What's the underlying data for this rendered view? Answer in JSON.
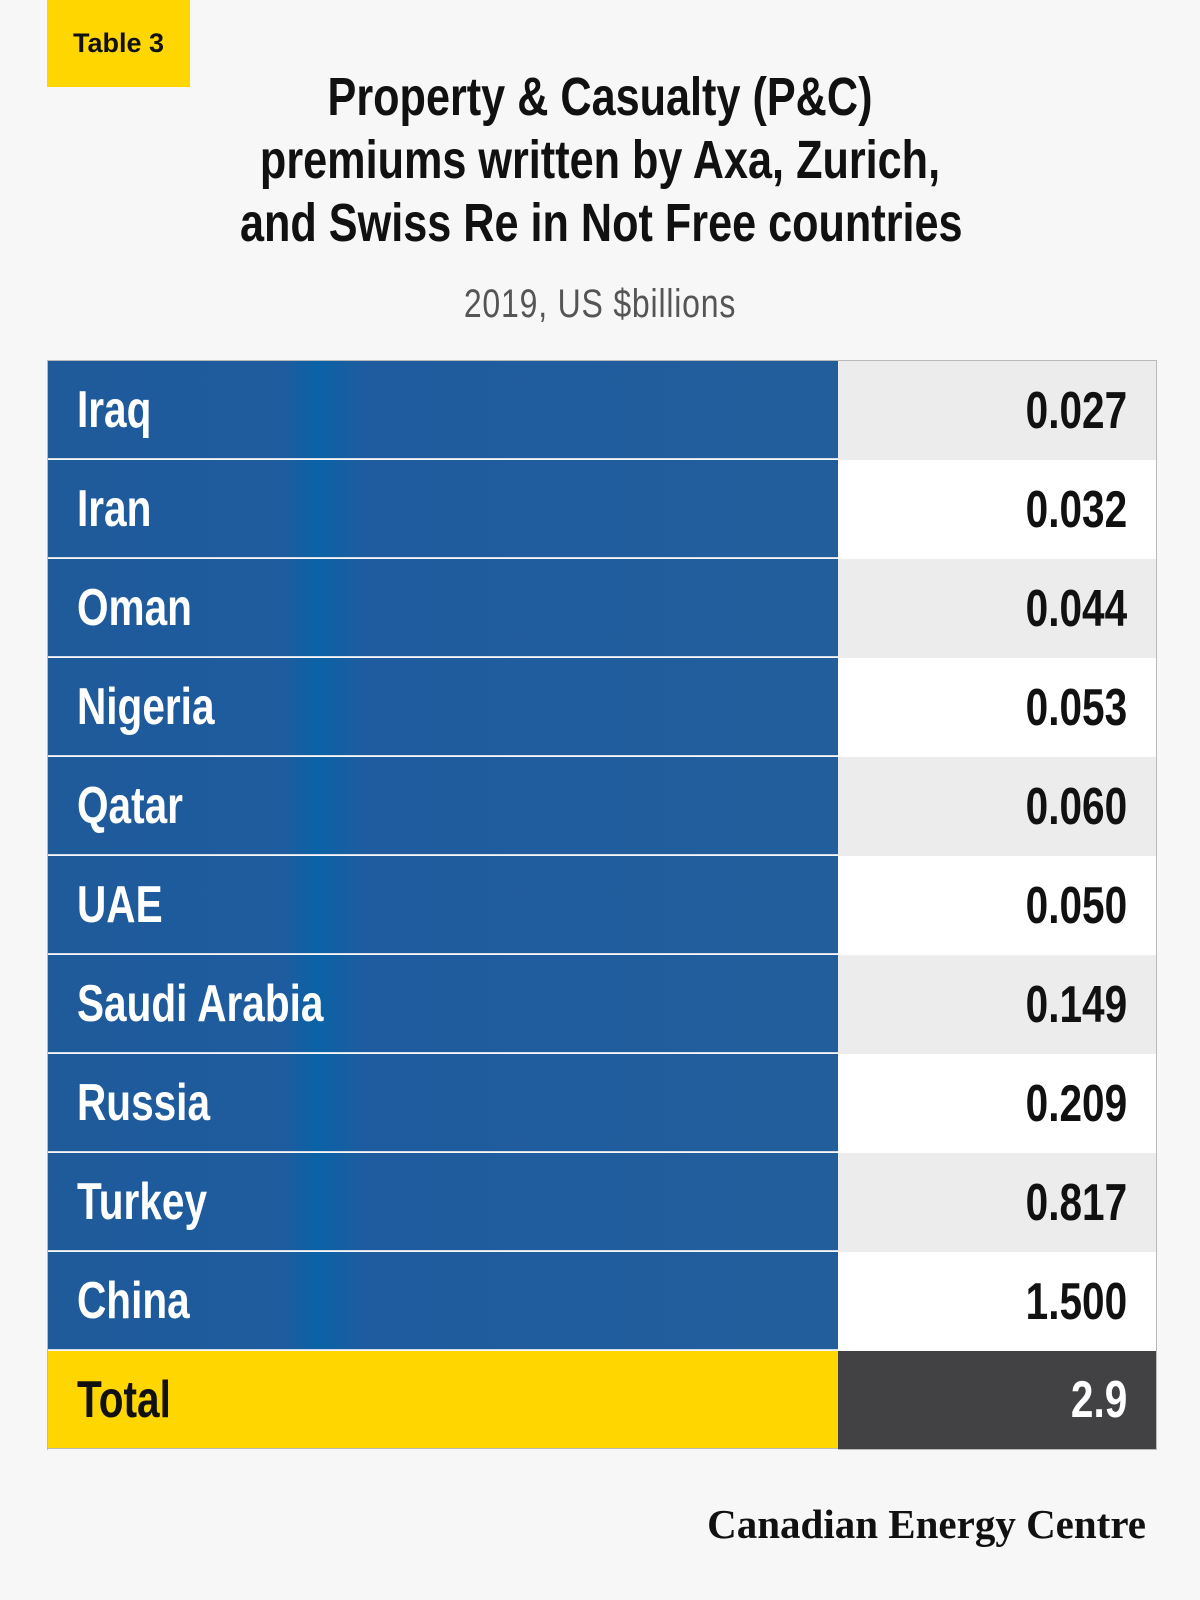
{
  "tag": "Table 3",
  "chart_data": {
    "type": "table",
    "title_lines": [
      "Property & Casualty (P&C)",
      "premiums written by Axa, Zurich,",
      "and Swiss Re in Not Free countries"
    ],
    "subtitle": "2019, US $billions",
    "rows": [
      {
        "country": "Iraq",
        "value": "0.027"
      },
      {
        "country": "Iran",
        "value": "0.032"
      },
      {
        "country": "Oman",
        "value": "0.044"
      },
      {
        "country": "Nigeria",
        "value": "0.053"
      },
      {
        "country": "Qatar",
        "value": "0.060"
      },
      {
        "country": "UAE",
        "value": "0.050"
      },
      {
        "country": "Saudi Arabia",
        "value": "0.149"
      },
      {
        "country": "Russia",
        "value": "0.209"
      },
      {
        "country": "Turkey",
        "value": "0.817"
      },
      {
        "country": "China",
        "value": "1.500"
      }
    ],
    "total": {
      "label": "Total",
      "value": "2.9"
    }
  },
  "brand": "Canadian Energy Centre",
  "colors": {
    "accent_yellow": "#ffd600",
    "row_blue": "#1f5c9c",
    "total_value_bg": "#424244"
  }
}
